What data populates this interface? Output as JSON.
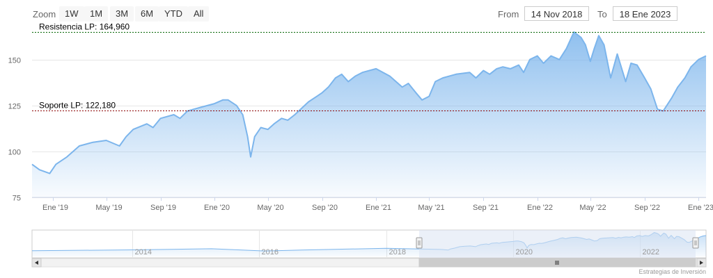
{
  "toolbar": {
    "zoom_label": "Zoom",
    "zoom_buttons": [
      "1W",
      "1M",
      "3M",
      "6M",
      "YTD",
      "All"
    ],
    "from_label": "From",
    "from_value": "14 Nov 2018",
    "to_label": "To",
    "to_value": "18 Ene 2023"
  },
  "credit": "Estrategias de Inversión",
  "colors": {
    "series_line": "#7cb5ec",
    "series_fill": "#7cb5ec",
    "resistance_line": "#006400",
    "support_line": "#8b0000",
    "navigator_mask": "#dbe3f3"
  },
  "chart_data": {
    "type": "area",
    "title": "",
    "xlabel": "",
    "ylabel": "",
    "xlim": [
      "2018-11-14",
      "2023-01-18"
    ],
    "ylim": [
      75,
      165
    ],
    "grid": true,
    "x_tick_labels": [
      "Ene '19",
      "May '19",
      "Sep '19",
      "Ene '20",
      "May '20",
      "Sep '20",
      "Ene '21",
      "May '21",
      "Sep '21",
      "Ene '22",
      "May '22",
      "Sep '22",
      "Ene '23"
    ],
    "y_tick_labels": [
      "75",
      "100",
      "125",
      "150"
    ],
    "y_ticks": [
      75,
      100,
      125,
      150
    ],
    "annotations": [
      {
        "label": "Resistencia LP: 164,960",
        "value": 164.96
      },
      {
        "label": "Soporte LP: 122,180",
        "value": 122.18
      }
    ],
    "series": [
      {
        "x": [
          "2018-11-14",
          "2018-12-01",
          "2018-12-24",
          "2019-01-07",
          "2019-02-01",
          "2019-03-01",
          "2019-04-01",
          "2019-05-01",
          "2019-05-31",
          "2019-06-15",
          "2019-07-01",
          "2019-08-01",
          "2019-08-15",
          "2019-09-01",
          "2019-10-01",
          "2019-10-15",
          "2019-11-01",
          "2019-12-01",
          "2020-01-01",
          "2020-01-20",
          "2020-02-01",
          "2020-02-20",
          "2020-03-05",
          "2020-03-16",
          "2020-03-23",
          "2020-04-01",
          "2020-04-15",
          "2020-05-01",
          "2020-05-15",
          "2020-06-01",
          "2020-06-15",
          "2020-07-01",
          "2020-08-01",
          "2020-08-20",
          "2020-09-01",
          "2020-09-15",
          "2020-10-01",
          "2020-10-15",
          "2020-10-30",
          "2020-11-15",
          "2020-12-01",
          "2021-01-01",
          "2021-02-01",
          "2021-02-15",
          "2021-03-01",
          "2021-03-15",
          "2021-04-01",
          "2021-04-15",
          "2021-05-01",
          "2021-05-15",
          "2021-06-01",
          "2021-07-01",
          "2021-08-01",
          "2021-08-15",
          "2021-09-01",
          "2021-09-15",
          "2021-10-01",
          "2021-10-15",
          "2021-11-01",
          "2021-11-20",
          "2021-12-01",
          "2021-12-15",
          "2022-01-01",
          "2022-01-15",
          "2022-02-01",
          "2022-02-20",
          "2022-03-08",
          "2022-03-25",
          "2022-04-10",
          "2022-04-20",
          "2022-05-01",
          "2022-05-10",
          "2022-05-20",
          "2022-06-01",
          "2022-06-16",
          "2022-07-01",
          "2022-07-20",
          "2022-08-01",
          "2022-08-15",
          "2022-09-01",
          "2022-09-15",
          "2022-09-30",
          "2022-10-13",
          "2022-11-01",
          "2022-11-15",
          "2022-12-01",
          "2022-12-15",
          "2023-01-01",
          "2023-01-18"
        ],
        "values": [
          93,
          90,
          88,
          93,
          97,
          103,
          105,
          106,
          103,
          108,
          112,
          115,
          113,
          118,
          120,
          118,
          122,
          124,
          126,
          128,
          128,
          125,
          120,
          108,
          97,
          108,
          113,
          112,
          115,
          118,
          117,
          120,
          127,
          130,
          132,
          135,
          140,
          142,
          138,
          141,
          143,
          145,
          141,
          138,
          135,
          137,
          132,
          128,
          130,
          138,
          140,
          142,
          143,
          140,
          144,
          142,
          145,
          146,
          145,
          147,
          143,
          150,
          152,
          148,
          152,
          150,
          156,
          165,
          162,
          158,
          149,
          156,
          163,
          158,
          140,
          153,
          138,
          148,
          147,
          140,
          134,
          123,
          122,
          129,
          135,
          140,
          146,
          150,
          152
        ]
      }
    ]
  },
  "navigator": {
    "year_labels": [
      "2014",
      "2016",
      "2018",
      "2020",
      "2022"
    ]
  }
}
